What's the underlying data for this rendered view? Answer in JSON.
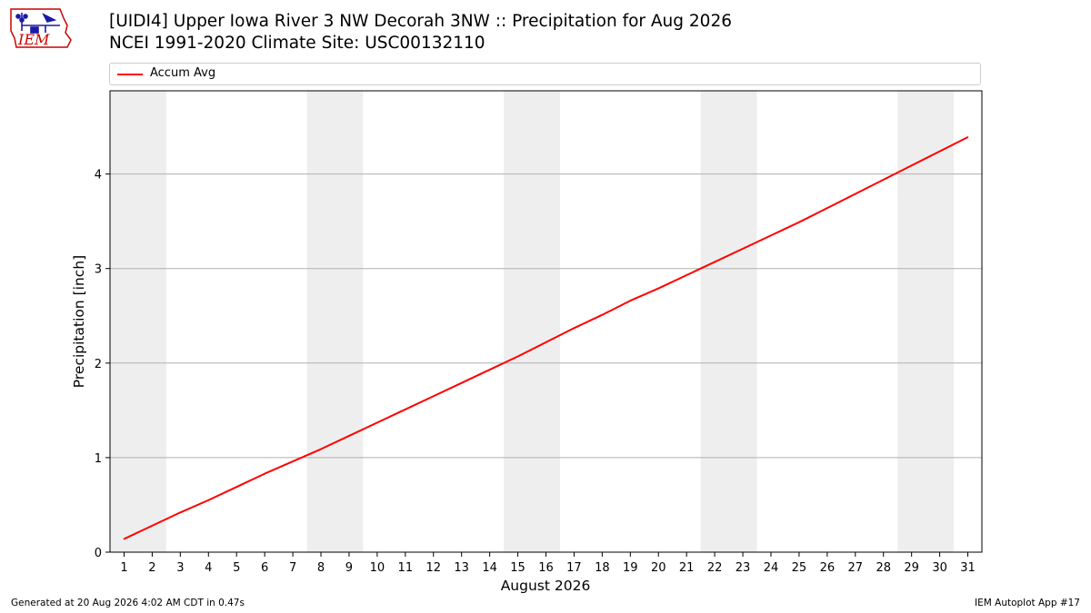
{
  "header": {
    "title_line1": "[UIDI4] Upper Iowa River 3 NW Decorah 3NW :: Precipitation for Aug 2026",
    "title_line2": "NCEI 1991-2020 Climate Site: USC00132110"
  },
  "logo": {
    "text": "IEM",
    "color": "#cc0000",
    "accent": "#1a1aa6"
  },
  "footer": {
    "generated": "Generated at 20 Aug 2026 4:02 AM CDT in 0.47s",
    "app": "IEM Autoplot App #17"
  },
  "chart_data": {
    "type": "line",
    "xlabel": "August 2026",
    "ylabel": "Precipitation [inch]",
    "x": [
      1,
      2,
      3,
      4,
      5,
      6,
      7,
      8,
      9,
      10,
      11,
      12,
      13,
      14,
      15,
      16,
      17,
      18,
      19,
      20,
      21,
      22,
      23,
      24,
      25,
      26,
      27,
      28,
      29,
      30,
      31
    ],
    "xlim": [
      0.5,
      31.5
    ],
    "ylim": [
      0,
      4.88
    ],
    "yticks": [
      0,
      1,
      2,
      3,
      4
    ],
    "grid": "y",
    "legend": "top",
    "weekend_shading": [
      [
        0.5,
        2.5
      ],
      [
        7.5,
        9.5
      ],
      [
        14.5,
        16.5
      ],
      [
        21.5,
        23.5
      ],
      [
        28.5,
        30.5
      ]
    ],
    "shade_color": "#eeeeee",
    "series": [
      {
        "name": "Accum Avg",
        "color": "#ff0000",
        "values": [
          0.14,
          0.28,
          0.42,
          0.55,
          0.69,
          0.83,
          0.96,
          1.09,
          1.23,
          1.37,
          1.51,
          1.65,
          1.79,
          1.93,
          2.07,
          2.22,
          2.37,
          2.51,
          2.66,
          2.79,
          2.93,
          3.07,
          3.21,
          3.35,
          3.49,
          3.64,
          3.79,
          3.94,
          4.09,
          4.24,
          4.39
        ]
      }
    ]
  }
}
